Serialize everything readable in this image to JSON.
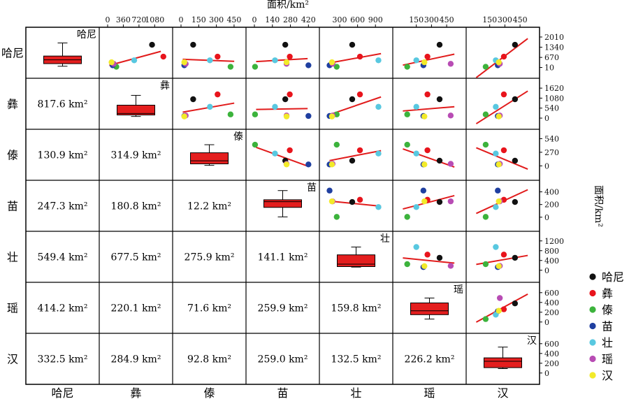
{
  "chart_data": {
    "type": "scatter",
    "axes_title": "面积/km²",
    "axis_top_label": "面积/km²",
    "axis_right_label": "面积/km²",
    "groups": [
      "哈尼",
      "彝",
      "傣",
      "苗",
      "壮",
      "瑶",
      "汉"
    ],
    "colors": {
      "哈尼": "#111111",
      "彝": "#e8141c",
      "傣": "#3cb33c",
      "苗": "#1f3fa0",
      "壮": "#58c8e0",
      "瑶": "#b84cb4",
      "汉": "#f2ea2a"
    },
    "top_axes": [
      {
        "ticks": [
          0,
          360,
          720,
          1080
        ],
        "range": [
          0,
          1300
        ]
      },
      {
        "ticks": [
          0,
          150,
          300,
          450
        ],
        "range": [
          0,
          480
        ]
      },
      {
        "ticks": [
          0,
          140,
          280,
          420
        ],
        "range": [
          0,
          440
        ]
      },
      {
        "ticks": [
          300,
          600,
          900
        ],
        "range": [
          100,
          1050
        ]
      },
      {
        "ticks": [
          150,
          300,
          450
        ],
        "range": [
          0,
          560
        ]
      },
      {
        "ticks": [
          150,
          300,
          450
        ],
        "range": [
          0,
          560
        ]
      }
    ],
    "right_axes": [
      {
        "ticks": [
          10,
          670,
          1340,
          2010
        ],
        "range": [
          -150,
          2100
        ]
      },
      {
        "ticks": [
          0,
          540,
          1080,
          1620
        ],
        "range": [
          -150,
          1700
        ]
      },
      {
        "ticks": [
          0,
          270,
          540
        ],
        "range": [
          -120,
          560
        ]
      },
      {
        "ticks": [
          0,
          200,
          400
        ],
        "range": [
          -90,
          450
        ]
      },
      {
        "ticks": [
          0,
          400,
          800,
          1200
        ],
        "range": [
          -150,
          1250
        ]
      },
      {
        "ticks": [
          0,
          200,
          400,
          600
        ],
        "range": [
          -60,
          640
        ]
      },
      {
        "ticks": [
          0,
          200,
          400,
          600
        ],
        "range": [
          -60,
          640
        ]
      }
    ],
    "values": {
      "哈尼": [
        1500,
        1020,
        103,
        240,
        510,
        380,
        400
      ],
      "彝": [
        720,
        1280,
        310,
        275,
        640,
        260,
        290
      ],
      "傣": [
        55,
        200,
        420,
        5,
        250,
        60,
        110
      ],
      "苗": [
        150,
        115,
        28,
        420,
        130,
        220,
        230
      ],
      "壮": [
        480,
        610,
        245,
        160,
        950,
        150,
        210
      ],
      "瑶": [
        250,
        140,
        40,
        250,
        180,
        490,
        250
      ],
      "汉": [
        350,
        90,
        28,
        250,
        170,
        230,
        240
      ]
    },
    "boxes": [
      {
        "group": "哈尼",
        "min": 90,
        "q1": 260,
        "median": 510,
        "q3": 760,
        "max": 1620
      },
      {
        "group": "彝",
        "min": 90,
        "q1": 170,
        "median": 250,
        "q3": 700,
        "max": 1230
      },
      {
        "group": "傣",
        "min": 10,
        "q1": 40,
        "median": 100,
        "q3": 260,
        "max": 420
      },
      {
        "group": "苗",
        "min": 5,
        "q1": 155,
        "median": 245,
        "q3": 275,
        "max": 420
      },
      {
        "group": "壮",
        "min": 130,
        "q1": 150,
        "median": 250,
        "q3": 630,
        "max": 950
      },
      {
        "group": "瑶",
        "min": 60,
        "q1": 150,
        "median": 230,
        "q3": 390,
        "max": 490
      },
      {
        "group": "汉",
        "min": 90,
        "q1": 110,
        "median": 240,
        "q3": 310,
        "max": 530
      }
    ],
    "distances": [
      {
        "row": 1,
        "col": 0,
        "label": "817.6 km²"
      },
      {
        "row": 2,
        "col": 0,
        "label": "130.9 km²"
      },
      {
        "row": 2,
        "col": 1,
        "label": "314.9 km²"
      },
      {
        "row": 3,
        "col": 0,
        "label": "247.3 km²"
      },
      {
        "row": 3,
        "col": 1,
        "label": "180.8 km²"
      },
      {
        "row": 3,
        "col": 2,
        "label": "12.2 km²"
      },
      {
        "row": 4,
        "col": 0,
        "label": "549.4 km²"
      },
      {
        "row": 4,
        "col": 1,
        "label": "677.5 km²"
      },
      {
        "row": 4,
        "col": 2,
        "label": "275.9 km²"
      },
      {
        "row": 4,
        "col": 3,
        "label": "141.1 km²"
      },
      {
        "row": 5,
        "col": 0,
        "label": "414.2 km²"
      },
      {
        "row": 5,
        "col": 1,
        "label": "220.1 km²"
      },
      {
        "row": 5,
        "col": 2,
        "label": "71.6 km²"
      },
      {
        "row": 5,
        "col": 3,
        "label": "259.9 km²"
      },
      {
        "row": 5,
        "col": 4,
        "label": "159.8 km²"
      },
      {
        "row": 6,
        "col": 0,
        "label": "332.5 km²"
      },
      {
        "row": 6,
        "col": 1,
        "label": "284.9 km²"
      },
      {
        "row": 6,
        "col": 2,
        "label": "92.8 km²"
      },
      {
        "row": 6,
        "col": 3,
        "label": "259.0 km²"
      },
      {
        "row": 6,
        "col": 4,
        "label": "132.5 km²"
      },
      {
        "row": 6,
        "col": 5,
        "label": "226.2 km²"
      }
    ],
    "legend": [
      "哈尼",
      "彝",
      "傣",
      "苗",
      "壮",
      "瑶",
      "汉"
    ],
    "legend_position": "right",
    "grid": false
  }
}
